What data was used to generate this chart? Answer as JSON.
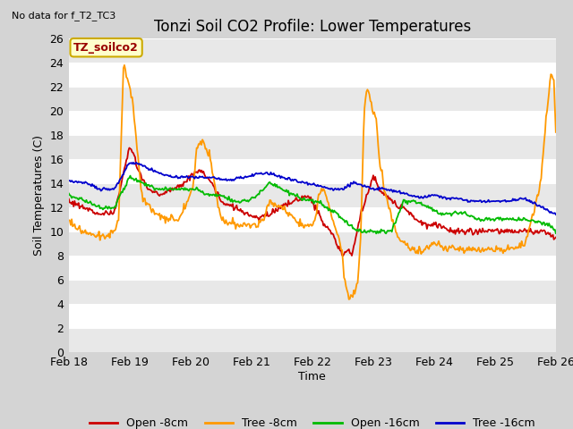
{
  "title": "Tonzi Soil CO2 Profile: Lower Temperatures",
  "subtitle": "No data for f_T2_TC3",
  "ylabel": "Soil Temperatures (C)",
  "xlabel": "Time",
  "legend_label": "TZ_soilco2",
  "ylim": [
    0,
    26
  ],
  "yticks": [
    0,
    2,
    4,
    6,
    8,
    10,
    12,
    14,
    16,
    18,
    20,
    22,
    24,
    26
  ],
  "xtick_labels": [
    "Feb 18",
    "Feb 19",
    "Feb 20",
    "Feb 21",
    "Feb 22",
    "Feb 23",
    "Feb 24",
    "Feb 25",
    "Feb 26"
  ],
  "fig_bg_color": "#d4d4d4",
  "plot_bg_color": "#ffffff",
  "band_color": "#e8e8e8",
  "line_colors": {
    "open8": "#cc0000",
    "tree8": "#ff9900",
    "open16": "#00bb00",
    "tree16": "#0000cc"
  },
  "legend_entries": [
    "Open -8cm",
    "Tree -8cm",
    "Open -16cm",
    "Tree -16cm"
  ],
  "title_fontsize": 12,
  "axis_fontsize": 9,
  "tick_fontsize": 9,
  "subtitle_fontsize": 8
}
